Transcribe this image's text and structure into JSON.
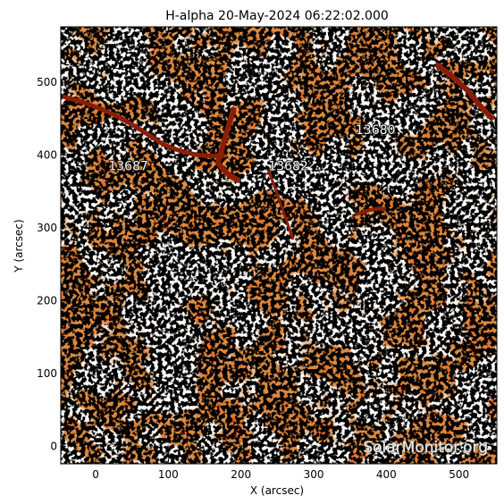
{
  "title": "H-alpha 20-May-2024 06:22:02.000",
  "x_axis": {
    "label": "X (arcsec)",
    "range": [
      -48,
      552
    ],
    "ticks": [
      0,
      100,
      200,
      300,
      400,
      500
    ],
    "tick_labels": [
      "0",
      "100",
      "200",
      "300",
      "400",
      "500"
    ]
  },
  "y_axis": {
    "label": "Y (arcsec)",
    "range": [
      -24,
      576
    ],
    "ticks": [
      0,
      100,
      200,
      300,
      400,
      500
    ],
    "tick_labels": [
      "0",
      "100",
      "200",
      "300",
      "400",
      "500"
    ]
  },
  "active_regions": [
    {
      "number": "13680",
      "x": 385,
      "y": 435
    },
    {
      "number": "13687",
      "x": 45,
      "y": 385
    },
    {
      "number": "13682",
      "x": 265,
      "y": 385
    }
  ],
  "watermark": "SolarMonitor.org",
  "colors": {
    "background": "#ffffff",
    "chromosphere": "#e8742a",
    "chromosphere_dark": "#b8420c",
    "plage": "#fff4e8",
    "filament": "#8a1e04",
    "axis": "#000000"
  }
}
